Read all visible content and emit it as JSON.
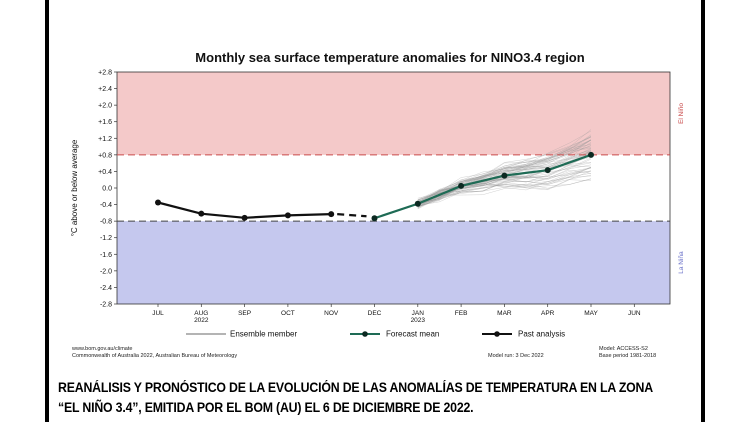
{
  "chart_data": {
    "type": "line",
    "title": "Monthly sea surface temperature anomalies for NINO3.4 region",
    "ylabel": "°C above or below average",
    "ylim": [
      -2.8,
      2.8
    ],
    "yticks": [
      "+2.8",
      "+2.4",
      "+2.0",
      "+1.6",
      "+1.2",
      "+0.8",
      "+0.4",
      "0.0",
      "-0.4",
      "-0.8",
      "-1.2",
      "-1.6",
      "-2.0",
      "-2.4",
      "-2.8"
    ],
    "categories": [
      "JUL",
      "AUG",
      "SEP",
      "OCT",
      "NOV",
      "DEC",
      "JAN",
      "FEB",
      "MAR",
      "APR",
      "MAY",
      "JUN"
    ],
    "year_labels": [
      {
        "category": "AUG",
        "text": "2022"
      },
      {
        "category": "JAN",
        "text": "2023"
      }
    ],
    "thresholds": [
      0.8,
      -0.8
    ],
    "regions": [
      {
        "name": "El Niño",
        "from": 0.8,
        "to": 2.8,
        "color": "#f4c9c9"
      },
      {
        "name": "La Niña",
        "from": -2.8,
        "to": -0.8,
        "color": "#c5c8ee"
      }
    ],
    "series": [
      {
        "name": "Past analysis",
        "color": "#111111",
        "x": [
          "JUL",
          "AUG",
          "SEP",
          "OCT",
          "NOV"
        ],
        "values": [
          -0.35,
          -0.62,
          -0.72,
          -0.66,
          -0.63
        ]
      },
      {
        "name": "Forecast mean",
        "color": "#1e6b55",
        "x": [
          "DEC",
          "JAN",
          "FEB",
          "MAR",
          "APR",
          "MAY"
        ],
        "values": [
          -0.73,
          -0.38,
          0.05,
          0.3,
          0.43,
          0.8
        ]
      }
    ],
    "ensemble": {
      "name": "Ensemble member",
      "color": "#9a9a9a",
      "spread": 0.55
    },
    "legend": [
      "Ensemble member",
      "Forecast mean",
      "Past analysis"
    ]
  },
  "footer": {
    "left_line1": "www.bom.gov.au/climate",
    "left_line2": "Commonwealth of Australia 2022, Australian Bureau of Meteorology",
    "model_run": "Model run: 3 Dec 2022",
    "model": "Model: ACCESS-S2",
    "base_period": "Base period 1981-2018"
  },
  "caption": {
    "line1": "REANÁLISIS Y PRONÓSTICO DE LA EVOLUCIÓN DE LAS ANOMALÍAS DE TEMPERATURA EN LA ZONA",
    "line2": "“EL NIÑO 3.4”, EMITIDA POR EL BOM (AU) EL 6 DE DICIEMBRE DE 2022."
  }
}
